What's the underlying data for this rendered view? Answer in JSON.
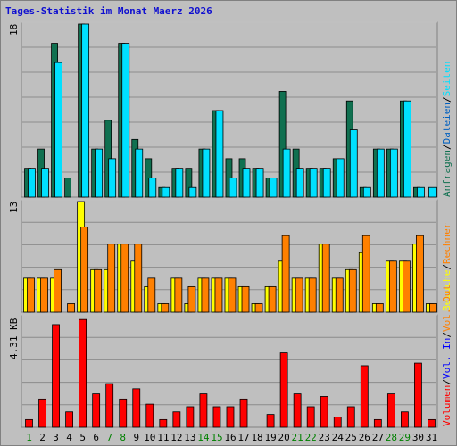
{
  "title": "Tages-Statistik im Monat Maerz 2026",
  "colors": {
    "background": "#bfbfbf",
    "anfragen": "#107050",
    "dateien": "#00e0ff",
    "seiten": "#00e0ff",
    "besuche": "#ffff00",
    "rechner": "#ff8000",
    "vol_out": "#ff8000",
    "vol_in": "#0000ff",
    "volumen": "#ff0000",
    "weekend_label": "#008000",
    "weekday_label": "#000000"
  },
  "chart_data": [
    {
      "type": "bar",
      "panel": "top",
      "ymax_label": "18",
      "ylim": [
        0,
        18
      ],
      "categories": [
        "1",
        "2",
        "3",
        "4",
        "5",
        "6",
        "7",
        "8",
        "9",
        "10",
        "11",
        "12",
        "13",
        "14",
        "15",
        "16",
        "17",
        "18",
        "19",
        "20",
        "21",
        "22",
        "23",
        "24",
        "25",
        "26",
        "27",
        "28",
        "29",
        "30",
        "31"
      ],
      "weekend": [
        1,
        7,
        8,
        14,
        15,
        21,
        22,
        28,
        29
      ],
      "legend": [
        {
          "text": "Anfragen",
          "color": "#107050"
        },
        {
          "text": "/",
          "color": "#000000"
        },
        {
          "text": "Dateien",
          "color": "#0060c0"
        },
        {
          "text": "/",
          "color": "#000000"
        },
        {
          "text": "Seiten",
          "color": "#00e0ff"
        }
      ],
      "series": [
        {
          "name": "Anfragen",
          "values": [
            3,
            5,
            16,
            2,
            18,
            5,
            8,
            16,
            6,
            4,
            1,
            3,
            3,
            5,
            9,
            4,
            4,
            3,
            2,
            11,
            5,
            3,
            3,
            4,
            10,
            1,
            5,
            5,
            10,
            1,
            0
          ]
        },
        {
          "name": "Dateien",
          "values": [
            3,
            3,
            14,
            0,
            18,
            5,
            4,
            16,
            5,
            2,
            1,
            3,
            1,
            5,
            9,
            2,
            3,
            3,
            2,
            5,
            3,
            3,
            3,
            4,
            7,
            1,
            5,
            5,
            10,
            1,
            0
          ]
        },
        {
          "name": "Seiten",
          "values": [
            0,
            0,
            0,
            0,
            0,
            0,
            0,
            0,
            0,
            0,
            0,
            0,
            0,
            0,
            0,
            0,
            0,
            0,
            0,
            0,
            0,
            0,
            0,
            0,
            0,
            0,
            0,
            0,
            0,
            0,
            1
          ]
        }
      ]
    },
    {
      "type": "bar",
      "panel": "middle",
      "ymax_label": "13",
      "ylim": [
        0,
        13
      ],
      "categories": [
        "1",
        "2",
        "3",
        "4",
        "5",
        "6",
        "7",
        "8",
        "9",
        "10",
        "11",
        "12",
        "13",
        "14",
        "15",
        "16",
        "17",
        "18",
        "19",
        "20",
        "21",
        "22",
        "23",
        "24",
        "25",
        "26",
        "27",
        "28",
        "29",
        "30",
        "31"
      ],
      "legend": [
        {
          "text": "Besuche",
          "color": "#ffff00"
        },
        {
          "text": "/",
          "color": "#000000"
        },
        {
          "text": "Rechner",
          "color": "#ff8000"
        }
      ],
      "series": [
        {
          "name": "Besuche",
          "values": [
            4,
            4,
            4,
            0,
            13,
            5,
            5,
            8,
            6,
            3,
            1,
            4,
            1,
            4,
            4,
            4,
            3,
            1,
            3,
            6,
            4,
            4,
            8,
            4,
            5,
            7,
            1,
            6,
            6,
            8,
            1
          ]
        },
        {
          "name": "Rechner",
          "values": [
            4,
            4,
            5,
            1,
            10,
            5,
            8,
            8,
            8,
            4,
            1,
            4,
            3,
            4,
            4,
            4,
            3,
            1,
            3,
            9,
            4,
            4,
            8,
            4,
            5,
            9,
            1,
            6,
            6,
            9,
            1
          ]
        }
      ]
    },
    {
      "type": "bar",
      "panel": "bottom",
      "ymax_label": "4.31 KB",
      "ylim": [
        0,
        4.31
      ],
      "categories": [
        "1",
        "2",
        "3",
        "4",
        "5",
        "6",
        "7",
        "8",
        "9",
        "10",
        "11",
        "12",
        "13",
        "14",
        "15",
        "16",
        "17",
        "18",
        "19",
        "20",
        "21",
        "22",
        "23",
        "24",
        "25",
        "26",
        "27",
        "28",
        "29",
        "30",
        "31"
      ],
      "legend": [
        {
          "text": "Volumen",
          "color": "#ff0000"
        },
        {
          "text": "/",
          "color": "#000000"
        },
        {
          "text": "Vol. In",
          "color": "#0000ff"
        },
        {
          "text": "/",
          "color": "#000000"
        },
        {
          "text": "Vol. Out",
          "color": "#ff8000"
        }
      ],
      "series": [
        {
          "name": "Volumen",
          "values": [
            0.3,
            1.1,
            4.0,
            0.6,
            4.2,
            1.3,
            1.7,
            1.1,
            1.5,
            0.9,
            0.3,
            0.6,
            0.8,
            1.3,
            0.8,
            0.8,
            1.1,
            0,
            0.5,
            2.9,
            1.3,
            0.8,
            1.2,
            0.4,
            0.8,
            2.4,
            0.3,
            1.3,
            0.6,
            2.5,
            0.3
          ]
        }
      ]
    }
  ]
}
